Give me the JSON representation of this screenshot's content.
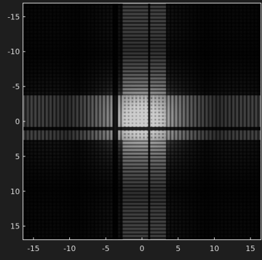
{
  "chart_data": {
    "type": "heatmap",
    "title": "",
    "xlabel": "",
    "ylabel": "",
    "xlim": [
      -16.5,
      16.5
    ],
    "ylim": [
      -17.0,
      17.0
    ],
    "y_reversed": true,
    "colormap": "gray",
    "x_ticks": [
      -15,
      -10,
      -5,
      0,
      5,
      10,
      15
    ],
    "y_ticks": [
      -15,
      -10,
      -5,
      0,
      5,
      10,
      15
    ],
    "x_tick_labels": [
      "-15",
      "-10",
      "-5",
      "0",
      "5",
      "10",
      "15"
    ],
    "y_tick_labels": [
      "-15",
      "-10",
      "-5",
      "0",
      "5",
      "10",
      "15"
    ],
    "grid": false,
    "colors": {
      "background": "#1e1e1e",
      "axes_text": "#d9d9d9",
      "plot_bg": "#000000"
    }
  }
}
